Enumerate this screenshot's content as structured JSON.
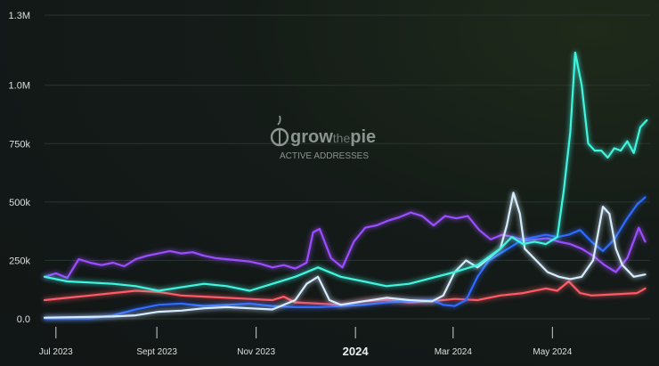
{
  "watermark": {
    "brand_a": "grow",
    "brand_b": "the",
    "brand_c": "pie",
    "subtitle": "ACTIVE ADDRESSES"
  },
  "chart_data": {
    "type": "line",
    "title": "",
    "xlabel": "",
    "ylabel": "",
    "ylim": [
      0,
      1300000
    ],
    "yticks": [
      {
        "value": 0,
        "label": "0.0"
      },
      {
        "value": 250000,
        "label": "250k"
      },
      {
        "value": 500000,
        "label": "500k"
      },
      {
        "value": 750000,
        "label": "750k"
      },
      {
        "value": 1000000,
        "label": "1.0M"
      },
      {
        "value": 1300000,
        "label": "1.3M"
      }
    ],
    "xlim": [
      "2023-06-24",
      "2024-06-30"
    ],
    "xticks": [
      {
        "date": "2023-07-01",
        "label": "Jul 2023",
        "major": false
      },
      {
        "date": "2023-09-01",
        "label": "Sept 2023",
        "major": false
      },
      {
        "date": "2023-11-01",
        "label": "Nov 2023",
        "major": false
      },
      {
        "date": "2024-01-01",
        "label": "2024",
        "major": true
      },
      {
        "date": "2024-03-01",
        "label": "Mar 2024",
        "major": false
      },
      {
        "date": "2024-05-01",
        "label": "May 2024",
        "major": false
      }
    ],
    "grid": true,
    "legend": "none",
    "series": [
      {
        "color": "#9b4dff",
        "points": [
          [
            "2023-06-24",
            180000
          ],
          [
            "2023-07-01",
            195000
          ],
          [
            "2023-07-08",
            175000
          ],
          [
            "2023-07-15",
            255000
          ],
          [
            "2023-07-22",
            240000
          ],
          [
            "2023-07-29",
            230000
          ],
          [
            "2023-08-05",
            240000
          ],
          [
            "2023-08-12",
            225000
          ],
          [
            "2023-08-19",
            255000
          ],
          [
            "2023-08-26",
            270000
          ],
          [
            "2023-09-02",
            280000
          ],
          [
            "2023-09-09",
            290000
          ],
          [
            "2023-09-16",
            280000
          ],
          [
            "2023-09-23",
            285000
          ],
          [
            "2023-09-30",
            270000
          ],
          [
            "2023-10-07",
            260000
          ],
          [
            "2023-10-14",
            255000
          ],
          [
            "2023-10-21",
            250000
          ],
          [
            "2023-10-28",
            245000
          ],
          [
            "2023-11-04",
            235000
          ],
          [
            "2023-11-11",
            220000
          ],
          [
            "2023-11-18",
            230000
          ],
          [
            "2023-11-25",
            215000
          ],
          [
            "2023-12-02",
            240000
          ],
          [
            "2023-12-06",
            370000
          ],
          [
            "2023-12-10",
            385000
          ],
          [
            "2023-12-17",
            260000
          ],
          [
            "2023-12-24",
            220000
          ],
          [
            "2023-12-31",
            330000
          ],
          [
            "2024-01-07",
            390000
          ],
          [
            "2024-01-14",
            400000
          ],
          [
            "2024-01-21",
            420000
          ],
          [
            "2024-01-28",
            435000
          ],
          [
            "2024-02-04",
            455000
          ],
          [
            "2024-02-11",
            440000
          ],
          [
            "2024-02-18",
            400000
          ],
          [
            "2024-02-25",
            440000
          ],
          [
            "2024-03-03",
            430000
          ],
          [
            "2024-03-10",
            440000
          ],
          [
            "2024-03-17",
            380000
          ],
          [
            "2024-03-24",
            340000
          ],
          [
            "2024-03-31",
            360000
          ],
          [
            "2024-04-07",
            350000
          ],
          [
            "2024-04-14",
            335000
          ],
          [
            "2024-04-21",
            340000
          ],
          [
            "2024-04-28",
            345000
          ],
          [
            "2024-05-05",
            330000
          ],
          [
            "2024-05-12",
            320000
          ],
          [
            "2024-05-19",
            300000
          ],
          [
            "2024-05-26",
            270000
          ],
          [
            "2024-06-02",
            230000
          ],
          [
            "2024-06-09",
            200000
          ],
          [
            "2024-06-16",
            260000
          ],
          [
            "2024-06-23",
            390000
          ],
          [
            "2024-06-27",
            330000
          ]
        ]
      },
      {
        "color": "#ff5a66",
        "points": [
          [
            "2023-06-24",
            80000
          ],
          [
            "2023-07-08",
            90000
          ],
          [
            "2023-07-22",
            100000
          ],
          [
            "2023-08-05",
            110000
          ],
          [
            "2023-08-19",
            120000
          ],
          [
            "2023-09-02",
            115000
          ],
          [
            "2023-09-16",
            100000
          ],
          [
            "2023-09-30",
            95000
          ],
          [
            "2023-10-14",
            90000
          ],
          [
            "2023-10-28",
            85000
          ],
          [
            "2023-11-11",
            80000
          ],
          [
            "2023-11-18",
            95000
          ],
          [
            "2023-11-25",
            70000
          ],
          [
            "2023-12-09",
            65000
          ],
          [
            "2023-12-23",
            60000
          ],
          [
            "2024-01-06",
            75000
          ],
          [
            "2024-01-20",
            80000
          ],
          [
            "2024-02-03",
            70000
          ],
          [
            "2024-02-17",
            75000
          ],
          [
            "2024-03-02",
            85000
          ],
          [
            "2024-03-16",
            80000
          ],
          [
            "2024-03-30",
            100000
          ],
          [
            "2024-04-13",
            110000
          ],
          [
            "2024-04-27",
            130000
          ],
          [
            "2024-05-04",
            120000
          ],
          [
            "2024-05-11",
            160000
          ],
          [
            "2024-05-18",
            110000
          ],
          [
            "2024-05-25",
            100000
          ],
          [
            "2024-06-08",
            105000
          ],
          [
            "2024-06-22",
            110000
          ],
          [
            "2024-06-27",
            130000
          ]
        ]
      },
      {
        "color": "#2f6bff",
        "points": [
          [
            "2023-06-24",
            2000
          ],
          [
            "2023-07-22",
            2000
          ],
          [
            "2023-08-05",
            15000
          ],
          [
            "2023-08-19",
            40000
          ],
          [
            "2023-09-02",
            60000
          ],
          [
            "2023-09-16",
            65000
          ],
          [
            "2023-09-30",
            55000
          ],
          [
            "2023-10-14",
            60000
          ],
          [
            "2023-10-28",
            65000
          ],
          [
            "2023-11-11",
            55000
          ],
          [
            "2023-11-25",
            50000
          ],
          [
            "2023-12-09",
            50000
          ],
          [
            "2023-12-23",
            55000
          ],
          [
            "2024-01-06",
            60000
          ],
          [
            "2024-01-20",
            70000
          ],
          [
            "2024-02-03",
            75000
          ],
          [
            "2024-02-17",
            80000
          ],
          [
            "2024-02-24",
            60000
          ],
          [
            "2024-03-02",
            55000
          ],
          [
            "2024-03-09",
            80000
          ],
          [
            "2024-03-16",
            180000
          ],
          [
            "2024-03-23",
            250000
          ],
          [
            "2024-03-30",
            280000
          ],
          [
            "2024-04-06",
            310000
          ],
          [
            "2024-04-13",
            340000
          ],
          [
            "2024-04-20",
            350000
          ],
          [
            "2024-04-27",
            360000
          ],
          [
            "2024-05-04",
            350000
          ],
          [
            "2024-05-11",
            360000
          ],
          [
            "2024-05-18",
            380000
          ],
          [
            "2024-05-25",
            330000
          ],
          [
            "2024-06-01",
            290000
          ],
          [
            "2024-06-08",
            340000
          ],
          [
            "2024-06-15",
            420000
          ],
          [
            "2024-06-22",
            490000
          ],
          [
            "2024-06-27",
            520000
          ]
        ]
      },
      {
        "color": "#d6ecff",
        "points": [
          [
            "2023-06-24",
            5000
          ],
          [
            "2023-08-05",
            10000
          ],
          [
            "2023-08-19",
            15000
          ],
          [
            "2023-09-02",
            30000
          ],
          [
            "2023-09-16",
            35000
          ],
          [
            "2023-09-30",
            45000
          ],
          [
            "2023-10-14",
            50000
          ],
          [
            "2023-10-28",
            45000
          ],
          [
            "2023-11-11",
            40000
          ],
          [
            "2023-11-25",
            80000
          ],
          [
            "2023-12-02",
            150000
          ],
          [
            "2023-12-09",
            180000
          ],
          [
            "2023-12-16",
            80000
          ],
          [
            "2023-12-23",
            60000
          ],
          [
            "2024-01-06",
            75000
          ],
          [
            "2024-01-20",
            90000
          ],
          [
            "2024-02-03",
            80000
          ],
          [
            "2024-02-17",
            75000
          ],
          [
            "2024-02-24",
            100000
          ],
          [
            "2024-03-02",
            200000
          ],
          [
            "2024-03-09",
            250000
          ],
          [
            "2024-03-16",
            220000
          ],
          [
            "2024-03-23",
            260000
          ],
          [
            "2024-03-30",
            300000
          ],
          [
            "2024-04-03",
            400000
          ],
          [
            "2024-04-07",
            540000
          ],
          [
            "2024-04-11",
            450000
          ],
          [
            "2024-04-14",
            300000
          ],
          [
            "2024-04-21",
            250000
          ],
          [
            "2024-04-28",
            200000
          ],
          [
            "2024-05-05",
            180000
          ],
          [
            "2024-05-12",
            170000
          ],
          [
            "2024-05-19",
            180000
          ],
          [
            "2024-05-26",
            250000
          ],
          [
            "2024-06-01",
            480000
          ],
          [
            "2024-06-05",
            450000
          ],
          [
            "2024-06-09",
            300000
          ],
          [
            "2024-06-13",
            230000
          ],
          [
            "2024-06-20",
            180000
          ],
          [
            "2024-06-27",
            190000
          ]
        ]
      },
      {
        "color": "#3ff5e0",
        "points": [
          [
            "2023-06-24",
            180000
          ],
          [
            "2023-07-08",
            160000
          ],
          [
            "2023-07-22",
            155000
          ],
          [
            "2023-08-05",
            150000
          ],
          [
            "2023-08-19",
            140000
          ],
          [
            "2023-09-02",
            120000
          ],
          [
            "2023-09-16",
            135000
          ],
          [
            "2023-09-30",
            150000
          ],
          [
            "2023-10-14",
            140000
          ],
          [
            "2023-10-28",
            120000
          ],
          [
            "2023-11-11",
            150000
          ],
          [
            "2023-11-25",
            180000
          ],
          [
            "2023-12-09",
            220000
          ],
          [
            "2023-12-23",
            180000
          ],
          [
            "2024-01-06",
            160000
          ],
          [
            "2024-01-20",
            140000
          ],
          [
            "2024-02-03",
            150000
          ],
          [
            "2024-02-17",
            175000
          ],
          [
            "2024-03-02",
            200000
          ],
          [
            "2024-03-16",
            230000
          ],
          [
            "2024-03-30",
            300000
          ],
          [
            "2024-04-06",
            350000
          ],
          [
            "2024-04-13",
            320000
          ],
          [
            "2024-04-20",
            330000
          ],
          [
            "2024-04-27",
            320000
          ],
          [
            "2024-05-04",
            350000
          ],
          [
            "2024-05-08",
            550000
          ],
          [
            "2024-05-12",
            800000
          ],
          [
            "2024-05-15",
            1140000
          ],
          [
            "2024-05-19",
            1000000
          ],
          [
            "2024-05-23",
            750000
          ],
          [
            "2024-05-27",
            720000
          ],
          [
            "2024-05-31",
            720000
          ],
          [
            "2024-06-04",
            690000
          ],
          [
            "2024-06-08",
            730000
          ],
          [
            "2024-06-12",
            720000
          ],
          [
            "2024-06-16",
            760000
          ],
          [
            "2024-06-20",
            710000
          ],
          [
            "2024-06-24",
            820000
          ],
          [
            "2024-06-28",
            850000
          ]
        ]
      }
    ]
  }
}
